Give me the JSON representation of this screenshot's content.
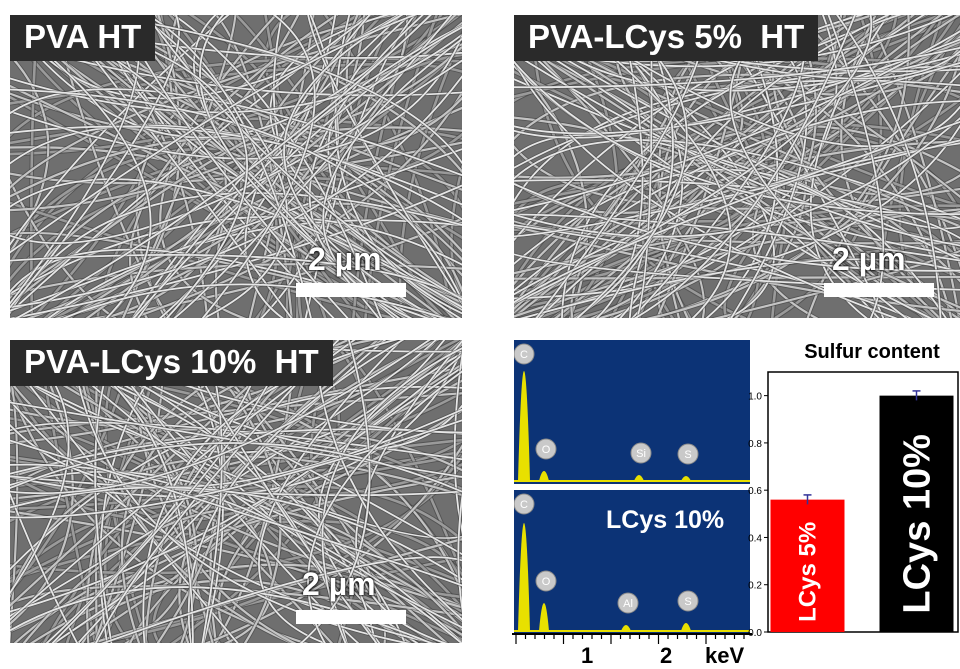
{
  "panels": {
    "pva": {
      "label": "PVA HT",
      "scale": "2 µm"
    },
    "lcys5": {
      "label": "PVA-LCys 5%  HT",
      "scale": "2 µm"
    },
    "lcys10": {
      "label": "PVA-LCys 10%  HT",
      "scale": "2 µm"
    }
  },
  "eds": {
    "top": {
      "peaks": [
        "C",
        "O",
        "Si",
        "S"
      ]
    },
    "bottom": {
      "label": "LCys 10%",
      "peaks": [
        "C",
        "O",
        "Al",
        "S"
      ]
    },
    "axis": {
      "ticks": [
        "1",
        "2"
      ],
      "unit": "keV"
    },
    "colors": {
      "background": "#0c3376",
      "peak": "#e8e000"
    }
  },
  "chart_data": {
    "type": "bar",
    "title": "Sulfur content",
    "categories": [
      "LCys 5%",
      "LCys 10%"
    ],
    "values": [
      0.56,
      1.0
    ],
    "errors": [
      0.02,
      0.02
    ],
    "colors": [
      "#ff0000",
      "#000000"
    ],
    "ylim": [
      0.0,
      1.1
    ],
    "yticks": [
      "0.0",
      "0.2",
      "0.4",
      "0.6",
      "0.8",
      "1.0"
    ],
    "xlabel": "",
    "ylabel": ""
  }
}
